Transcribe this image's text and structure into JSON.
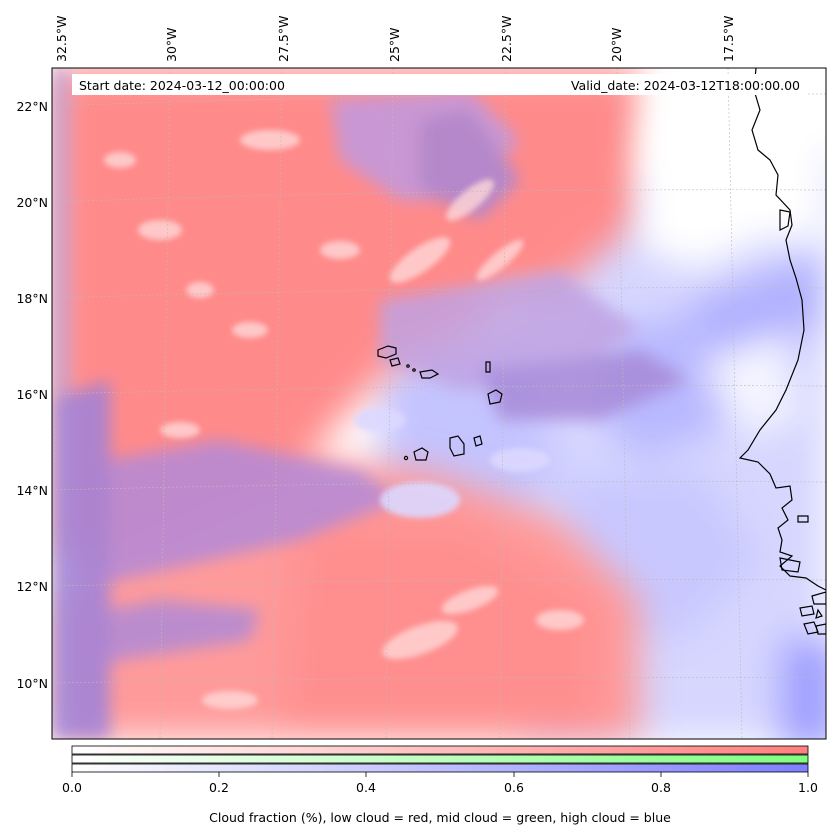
{
  "map": {
    "start_date_label": "Start date: 2024-03-12_00:00:00",
    "valid_date_label": "Valid_date: 2024-03-12T18:00:00.00",
    "projection": "lambert-conformal",
    "coastline_color": "#000000",
    "gridline_color": "#bbbbbb",
    "lon_labels": [
      "32.5°W",
      "30°W",
      "27.5°W",
      "25°W",
      "22.5°W",
      "20°W",
      "17.5°W"
    ],
    "lat_labels": [
      "22°N",
      "20°N",
      "18°N",
      "16°N",
      "14°N",
      "12°N",
      "10°N"
    ]
  },
  "field_colors": {
    "low_cloud": "#ff7f7f",
    "mid_cloud": "#7fff7f",
    "high_cloud": "#7f7fff",
    "mixed_low_high": "#b07fd0",
    "clear": "#ffffff"
  },
  "colorbar": {
    "ticks": [
      "0.0",
      "0.2",
      "0.4",
      "0.6",
      "0.8",
      "1.0"
    ],
    "range": [
      0.0,
      1.0
    ],
    "title": "Cloud fraction (%), low cloud = red, mid cloud = green, high cloud = blue",
    "bars": [
      {
        "name": "low cloud",
        "color": "#ff7f7f"
      },
      {
        "name": "mid cloud",
        "color": "#7fff7f"
      },
      {
        "name": "high cloud",
        "color": "#7f7fff"
      }
    ]
  }
}
